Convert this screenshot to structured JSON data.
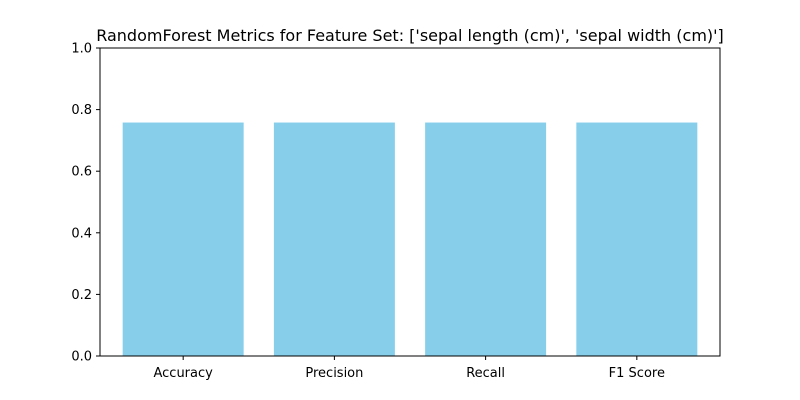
{
  "chart_data": {
    "type": "bar",
    "title": "RandomForest Metrics for Feature Set: ['sepal length (cm)', 'sepal width (cm)']",
    "categories": [
      "Accuracy",
      "Precision",
      "Recall",
      "F1 Score"
    ],
    "values": [
      0.758,
      0.758,
      0.758,
      0.758
    ],
    "xlabel": "",
    "ylabel": "",
    "ylim": [
      0,
      1
    ],
    "yticks": [
      0.0,
      0.2,
      0.4,
      0.6,
      0.8,
      1.0
    ],
    "ytick_labels": [
      "0.0",
      "0.2",
      "0.4",
      "0.6",
      "0.8",
      "1.0"
    ],
    "grid": false,
    "legend": "none",
    "bar_color": "#87ceeb",
    "axis_color": "#000000"
  }
}
